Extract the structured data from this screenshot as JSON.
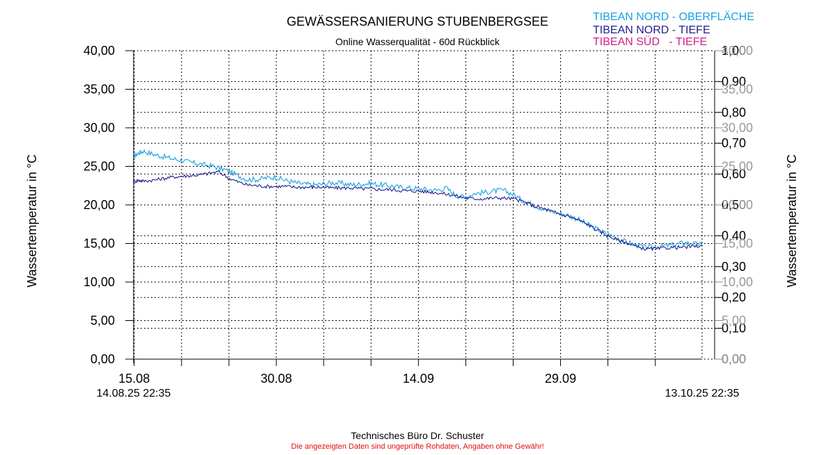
{
  "chart_data": {
    "type": "line",
    "title": "GEWÄSSERSANIERUNG STUBENBERGSEE",
    "subtitle": "Online Wasserqualität - 60d Rückblick",
    "ylabel_left": "Wassertemperatur in °C",
    "ylabel_right": "Wassertemperatur in °C",
    "ylim_left": [
      0,
      40
    ],
    "ylim_right_temp": [
      0,
      40
    ],
    "ylim_right_secondary": [
      0,
      1
    ],
    "x_start_label": "14.08.25 22:35",
    "x_end_label": "13.10.25 22:35",
    "x_range_days": [
      0,
      60
    ],
    "x_major_ticks": [
      {
        "day": 0.06,
        "label": "15.08"
      },
      {
        "day": 15.06,
        "label": "30.08"
      },
      {
        "day": 30.06,
        "label": "14.09"
      },
      {
        "day": 45.06,
        "label": "29.09"
      }
    ],
    "x_grid_days": [
      0.06,
      5.06,
      10.06,
      15.06,
      20.06,
      25.06,
      30.06,
      35.06,
      40.06,
      45.06,
      50.06,
      55.06
    ],
    "y_left_ticks": [
      "0,00",
      "5,00",
      "10,00",
      "15,00",
      "20,00",
      "25,00",
      "30,00",
      "35,00",
      "40,00"
    ],
    "y_right_temp_ticks": [
      "0,00",
      "5,00",
      "10,00",
      "15,00",
      "20,00",
      "25,00",
      "30,00",
      "35,00",
      "40,00"
    ],
    "y_right_secondary_ticks": [
      "0,00",
      "0,10",
      "0,20",
      "0,30",
      "0,40",
      "0,50",
      "0,60",
      "0,70",
      "0,80",
      "0,90",
      "1,00"
    ],
    "grid": true,
    "legend_position": "top-right",
    "series": [
      {
        "name": "TIBEAN NORD - OBERFLÄCHE",
        "color": "#19a0e0",
        "x": [
          0,
          0.5,
          1,
          2,
          3,
          4,
          5,
          6,
          7,
          8,
          9,
          10,
          11,
          12,
          13,
          14,
          15,
          16,
          17,
          18,
          19,
          20,
          21,
          22,
          23,
          24,
          25,
          26,
          27,
          28,
          29,
          30,
          31,
          32,
          33,
          34,
          35,
          36,
          37,
          38,
          39,
          40,
          41,
          42,
          43,
          44,
          45,
          46,
          47,
          48,
          49,
          50,
          51,
          52,
          53,
          54,
          55,
          56,
          57,
          58,
          59,
          60
        ],
        "y": [
          26.3,
          26.7,
          27.0,
          26.6,
          26.3,
          26.0,
          25.8,
          25.5,
          25.3,
          25.1,
          24.8,
          24.4,
          23.8,
          23.3,
          23.3,
          23.5,
          23.6,
          23.2,
          22.9,
          22.7,
          22.6,
          22.7,
          22.9,
          22.8,
          22.6,
          22.7,
          22.8,
          22.6,
          22.5,
          22.3,
          22.2,
          22.1,
          22.0,
          21.9,
          22.2,
          21.2,
          21.0,
          21.5,
          21.6,
          21.8,
          21.9,
          21.4,
          20.6,
          20.1,
          19.6,
          19.2,
          18.9,
          18.6,
          18.1,
          17.4,
          16.8,
          16.2,
          15.7,
          15.2,
          14.8,
          14.5,
          14.5,
          14.7,
          14.8,
          15.1,
          15.0,
          14.8
        ]
      },
      {
        "name": "TIBEAN NORD - TIEFE",
        "color": "#1f1f8c",
        "x": [
          0,
          0.5,
          1,
          2,
          3,
          4,
          5,
          6,
          7,
          8,
          9,
          10,
          11,
          12,
          13,
          14,
          15,
          16,
          17,
          18,
          19,
          20,
          21,
          22,
          23,
          24,
          25,
          26,
          27,
          28,
          29,
          30,
          31,
          32,
          33,
          34,
          35,
          36,
          37,
          38,
          39,
          40,
          41,
          42,
          43,
          44,
          45,
          46,
          47,
          48,
          49,
          50,
          51,
          52,
          53,
          54,
          55,
          56,
          57,
          58,
          59,
          60
        ],
        "y": [
          23.0,
          23.2,
          23.1,
          23.2,
          23.4,
          23.6,
          23.7,
          23.8,
          23.9,
          24.1,
          24.3,
          23.5,
          23.0,
          22.6,
          22.5,
          22.4,
          22.4,
          22.4,
          22.3,
          22.3,
          22.3,
          22.3,
          22.2,
          22.2,
          22.2,
          22.1,
          22.1,
          22.0,
          22.0,
          21.9,
          21.8,
          21.8,
          21.7,
          21.6,
          21.4,
          21.2,
          20.9,
          20.8,
          20.8,
          20.9,
          20.9,
          20.8,
          20.5,
          20.0,
          19.6,
          19.2,
          18.8,
          18.5,
          18.0,
          17.4,
          16.7,
          16.0,
          15.5,
          15.1,
          14.6,
          14.3,
          14.3,
          14.4,
          14.5,
          14.5,
          14.6,
          14.7
        ]
      },
      {
        "name": "TIBEAN SÜD   - TIEFE",
        "color": "#d0208c",
        "x": [],
        "y": []
      }
    ]
  },
  "footer": {
    "company": "Technisches Büro Dr. Schuster",
    "disclaimer": "Die angezeigten Daten sind ungeprüfte Rohdaten, Angaben ohne Gewähr!"
  }
}
